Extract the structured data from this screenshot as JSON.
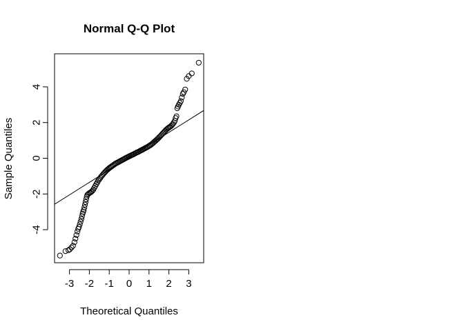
{
  "chart_data": {
    "type": "scatter",
    "title": "Normal Q-Q Plot",
    "xlabel": "Theoretical Quantiles",
    "ylabel": "Sample Quantiles",
    "xlim": [
      -3.75,
      3.75
    ],
    "ylim": [
      -5.85,
      5.85
    ],
    "xticks": [
      -3,
      -2,
      -1,
      0,
      1,
      2,
      3
    ],
    "yticks": [
      -4,
      -2,
      0,
      2,
      4
    ],
    "grid": false,
    "marker": "open-circle",
    "reference_line": {
      "slope": 0.7,
      "intercept": 0.05
    },
    "series": [
      {
        "points": [
          [
            -3.48,
            -5.45
          ],
          [
            -3.2,
            -5.2
          ],
          [
            -3.05,
            -5.15
          ],
          [
            -2.98,
            -5.1
          ],
          [
            -2.9,
            -5.0
          ],
          [
            -2.82,
            -4.9
          ],
          [
            -2.75,
            -4.7
          ],
          [
            -2.7,
            -4.5
          ],
          [
            -2.65,
            -4.3
          ],
          [
            -2.6,
            -4.1
          ],
          [
            -2.56,
            -3.95
          ],
          [
            -2.52,
            -3.85
          ],
          [
            -2.48,
            -3.7
          ],
          [
            -2.44,
            -3.55
          ],
          [
            -2.4,
            -3.4
          ],
          [
            -2.37,
            -3.25
          ],
          [
            -2.34,
            -3.1
          ],
          [
            -2.31,
            -3.0
          ],
          [
            -2.28,
            -2.9
          ],
          [
            -2.25,
            -2.75
          ],
          [
            -2.22,
            -2.6
          ],
          [
            -2.19,
            -2.45
          ],
          [
            -2.16,
            -2.3
          ],
          [
            -2.13,
            -2.15
          ],
          [
            -2.1,
            -2.05
          ],
          [
            -2.05,
            -2.0
          ],
          [
            -2.0,
            -1.95
          ],
          [
            -1.95,
            -1.92
          ],
          [
            -1.9,
            -1.88
          ],
          [
            -1.85,
            -1.83
          ],
          [
            -1.8,
            -1.75
          ],
          [
            -1.75,
            -1.65
          ],
          [
            -1.7,
            -1.55
          ],
          [
            -1.65,
            -1.45
          ],
          [
            -1.6,
            -1.35
          ],
          [
            -1.55,
            -1.25
          ],
          [
            -1.5,
            -1.18
          ],
          [
            -1.45,
            -1.1
          ],
          [
            -1.4,
            -1.02
          ],
          [
            -1.35,
            -0.95
          ],
          [
            -1.3,
            -0.88
          ],
          [
            -1.25,
            -0.82
          ],
          [
            -1.2,
            -0.76
          ],
          [
            -1.15,
            -0.7
          ],
          [
            -1.1,
            -0.65
          ],
          [
            -1.05,
            -0.6
          ],
          [
            -1.0,
            -0.55
          ],
          [
            -0.95,
            -0.51
          ],
          [
            -0.9,
            -0.47
          ],
          [
            -0.85,
            -0.43
          ],
          [
            -0.8,
            -0.39
          ],
          [
            -0.75,
            -0.35
          ],
          [
            -0.7,
            -0.31
          ],
          [
            -0.65,
            -0.28
          ],
          [
            -0.6,
            -0.25
          ],
          [
            -0.55,
            -0.22
          ],
          [
            -0.5,
            -0.19
          ],
          [
            -0.45,
            -0.16
          ],
          [
            -0.4,
            -0.13
          ],
          [
            -0.35,
            -0.1
          ],
          [
            -0.3,
            -0.07
          ],
          [
            -0.25,
            -0.04
          ],
          [
            -0.2,
            -0.01
          ],
          [
            -0.15,
            0.02
          ],
          [
            -0.1,
            0.05
          ],
          [
            -0.05,
            0.08
          ],
          [
            0.0,
            0.1
          ],
          [
            0.05,
            0.13
          ],
          [
            0.1,
            0.16
          ],
          [
            0.15,
            0.19
          ],
          [
            0.2,
            0.21
          ],
          [
            0.25,
            0.24
          ],
          [
            0.3,
            0.27
          ],
          [
            0.35,
            0.3
          ],
          [
            0.4,
            0.33
          ],
          [
            0.45,
            0.35
          ],
          [
            0.5,
            0.38
          ],
          [
            0.55,
            0.41
          ],
          [
            0.6,
            0.44
          ],
          [
            0.65,
            0.47
          ],
          [
            0.7,
            0.5
          ],
          [
            0.75,
            0.53
          ],
          [
            0.8,
            0.56
          ],
          [
            0.85,
            0.59
          ],
          [
            0.9,
            0.62
          ],
          [
            0.95,
            0.65
          ],
          [
            1.0,
            0.69
          ],
          [
            1.05,
            0.72
          ],
          [
            1.1,
            0.76
          ],
          [
            1.15,
            0.8
          ],
          [
            1.2,
            0.85
          ],
          [
            1.25,
            0.9
          ],
          [
            1.3,
            0.95
          ],
          [
            1.35,
            1.0
          ],
          [
            1.4,
            1.05
          ],
          [
            1.45,
            1.1
          ],
          [
            1.5,
            1.16
          ],
          [
            1.55,
            1.22
          ],
          [
            1.6,
            1.28
          ],
          [
            1.65,
            1.34
          ],
          [
            1.7,
            1.4
          ],
          [
            1.75,
            1.46
          ],
          [
            1.8,
            1.52
          ],
          [
            1.85,
            1.58
          ],
          [
            1.9,
            1.63
          ],
          [
            1.95,
            1.68
          ],
          [
            2.0,
            1.72
          ],
          [
            2.05,
            1.76
          ],
          [
            2.1,
            1.8
          ],
          [
            2.15,
            1.85
          ],
          [
            2.2,
            1.92
          ],
          [
            2.25,
            2.0
          ],
          [
            2.3,
            2.1
          ],
          [
            2.34,
            2.25
          ],
          [
            2.38,
            2.35
          ],
          [
            2.42,
            2.8
          ],
          [
            2.46,
            2.9
          ],
          [
            2.5,
            3.0
          ],
          [
            2.55,
            3.1
          ],
          [
            2.6,
            3.2
          ],
          [
            2.65,
            3.4
          ],
          [
            2.7,
            3.6
          ],
          [
            2.75,
            3.7
          ],
          [
            2.82,
            3.85
          ],
          [
            2.9,
            4.45
          ],
          [
            3.0,
            4.6
          ],
          [
            3.15,
            4.75
          ],
          [
            3.5,
            5.35
          ]
        ]
      }
    ]
  }
}
